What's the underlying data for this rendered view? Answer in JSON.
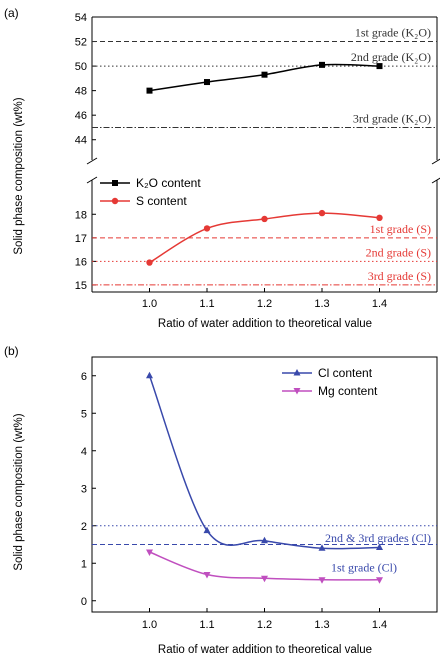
{
  "colors": {
    "k2o": "#000000",
    "s": "#e53935",
    "cl": "#3949ab",
    "mg": "#c04fbf",
    "ref_black": "#333333",
    "ref_red": "#e53935",
    "ref_blue": "#3949ab"
  },
  "chart_data": [
    {
      "type": "line",
      "panel_label": "(a)",
      "ylabel": "Solid phase composition (wt%)",
      "xlabel": "Ratio of water addition to theoretical value",
      "x_ticks": [
        "1.0",
        "1.1",
        "1.2",
        "1.3",
        "1.4"
      ],
      "xlim": [
        0.9,
        1.5
      ],
      "broken_axis": true,
      "upper_ylim": [
        43,
        54
      ],
      "upper_yticks": [
        "44",
        "46",
        "48",
        "50",
        "52",
        "54"
      ],
      "lower_ylim": [
        14.7,
        19.2
      ],
      "lower_yticks": [
        "15",
        "16",
        "17",
        "18"
      ],
      "series": [
        {
          "name": "K₂O content",
          "marker": "square",
          "color": "#000000",
          "x": [
            1.0,
            1.1,
            1.2,
            1.3,
            1.4
          ],
          "y": [
            48.0,
            48.7,
            49.3,
            50.1,
            50.0
          ]
        },
        {
          "name": "S content",
          "marker": "circle",
          "color": "#e53935",
          "x": [
            1.0,
            1.1,
            1.2,
            1.3,
            1.4
          ],
          "y": [
            15.95,
            17.4,
            17.8,
            18.05,
            17.85
          ]
        }
      ],
      "reference_lines": [
        {
          "label": "1st grade (K₂O)",
          "y": 52,
          "style": "dashed",
          "color": "#333333",
          "band": "upper"
        },
        {
          "label": "2nd grade (K₂O)",
          "y": 50,
          "style": "dotted",
          "color": "#333333",
          "band": "upper"
        },
        {
          "label": "3rd grade (K₂O)",
          "y": 45,
          "style": "dashdot",
          "color": "#333333",
          "band": "upper"
        },
        {
          "label": "1st grade (S)",
          "y": 17,
          "style": "dashed",
          "color": "#e53935",
          "band": "lower"
        },
        {
          "label": "2nd grade (S)",
          "y": 16,
          "style": "dotted",
          "color": "#e53935",
          "band": "lower"
        },
        {
          "label": "3rd grade (S)",
          "y": 15,
          "style": "dashdot",
          "color": "#e53935",
          "band": "lower"
        }
      ],
      "legend_position": "middle-left"
    },
    {
      "type": "line",
      "panel_label": "(b)",
      "ylabel": "Solid phase composition (wt%)",
      "xlabel": "Ratio of water addition to theoretical value",
      "x_ticks": [
        "1.0",
        "1.1",
        "1.2",
        "1.3",
        "1.4"
      ],
      "xlim": [
        0.9,
        1.5
      ],
      "ylim": [
        -0.3,
        6.5
      ],
      "y_ticks": [
        "0",
        "1",
        "2",
        "3",
        "4",
        "5",
        "6"
      ],
      "series": [
        {
          "name": "Cl content",
          "marker": "triangle-up",
          "color": "#3949ab",
          "x": [
            1.0,
            1.1,
            1.2,
            1.3,
            1.4
          ],
          "y": [
            6.0,
            1.87,
            1.6,
            1.4,
            1.42
          ]
        },
        {
          "name": "Mg content",
          "marker": "triangle-down",
          "color": "#c04fbf",
          "x": [
            1.0,
            1.1,
            1.2,
            1.3,
            1.4
          ],
          "y": [
            1.3,
            0.7,
            0.6,
            0.56,
            0.56
          ]
        }
      ],
      "reference_lines": [
        {
          "label": "2nd & 3rd grades (Cl)",
          "y": 2.0,
          "style": "dotted",
          "color": "#3949ab"
        },
        {
          "label": "1st grade (Cl)",
          "y": 1.5,
          "style": "dashed",
          "color": "#3949ab"
        }
      ],
      "legend_position": "top-right"
    }
  ]
}
